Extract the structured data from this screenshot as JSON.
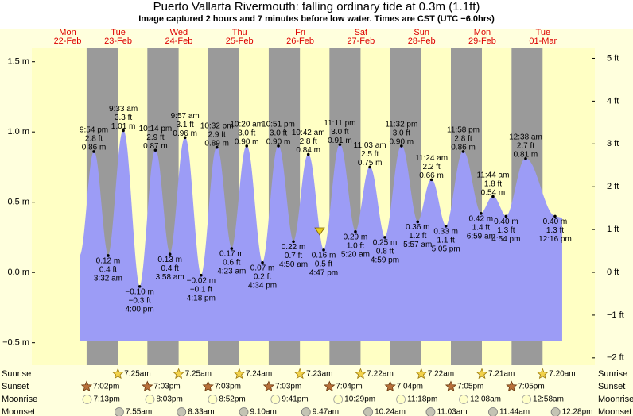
{
  "chart_data": {
    "type": "tide",
    "title": "Puerto Vallarta Rivermouth: falling  ordinary tide at 0.3m (1.1ft)",
    "subtitle": "Image captured 2 hours and 7 minutes before low water. Times are CST (UTC −6.0hrs)",
    "categories": [
      "Mon",
      "Tue",
      "Wed",
      "Thu",
      "Fri",
      "Sat",
      "Sun",
      "Mon",
      "Tue"
    ],
    "dates": [
      "22-Feb",
      "23-Feb",
      "24-Feb",
      "25-Feb",
      "26-Feb",
      "27-Feb",
      "28-Feb",
      "29-Feb",
      "01-Mar"
    ],
    "ylim": [
      -0.66,
      1.6
    ],
    "yticks": [
      {
        "value": -0.5,
        "label": "−0.5 m"
      },
      {
        "value": 0,
        "label": "0.0 m"
      },
      {
        "value": 0.5,
        "label": "0.5 m"
      },
      {
        "value": 1,
        "label": "1.0 m"
      },
      {
        "value": 1.5,
        "label": "1.5 m"
      }
    ],
    "y2lim": [
      -2.17,
      5.25
    ],
    "y2ticks": [
      {
        "value": -2,
        "label": "−2 ft"
      },
      {
        "value": -1,
        "label": "−1 ft"
      },
      {
        "value": 0,
        "label": "0 ft"
      },
      {
        "value": 1,
        "label": "1 ft"
      },
      {
        "value": 2,
        "label": "2 ft"
      },
      {
        "value": 3,
        "label": "3 ft"
      },
      {
        "value": 4,
        "label": "4 ft"
      },
      {
        "value": 5,
        "label": "5 ft"
      }
    ],
    "tides": {
      "color": "#9c9cf6",
      "times": [
        "9:54 pm",
        "3:32 am",
        "9:33 am",
        "4:00 pm",
        "10:14 pm",
        "3:58 am",
        "9:57 am",
        "4:18 pm",
        "10:32 pm",
        "4:23 am",
        "10:20 am",
        "4:34 pm",
        "10:51 pm",
        "4:50 am",
        "10:42 am",
        "4:47 pm",
        "11:11 pm",
        "5:20 am",
        "11:03 am",
        "4:59 pm",
        "11:32 pm",
        "5:57 am",
        "11:24 am",
        "5:05 pm",
        "11:58 pm",
        "6:59 am",
        "11:44 am",
        "4:54 pm",
        "12:38 am",
        "12:16 pm"
      ],
      "values": [
        0.86,
        0.12,
        1.01,
        -0.1,
        0.87,
        0.13,
        0.96,
        -0.02,
        0.89,
        0.17,
        0.9,
        0.07,
        0.9,
        0.22,
        0.84,
        0.16,
        0.91,
        0.29,
        0.75,
        0.25,
        0.9,
        0.36,
        0.66,
        0.33,
        0.86,
        0.42,
        0.54,
        0.4,
        0.81,
        0.4
      ],
      "value_labels": [
        "0.86 m",
        "0.12 m",
        "1.01 m",
        "−0.10 m",
        "0.87 m",
        "0.13 m",
        "0.96 m",
        "−0.02 m",
        "0.89 m",
        "0.17 m",
        "0.90 m",
        "0.07 m",
        "0.90 m",
        "0.22 m",
        "0.84 m",
        "0.16 m",
        "0.91 m",
        "0.29 m",
        "0.75 m",
        "0.25 m",
        "0.90 m",
        "0.36 m",
        "0.66 m",
        "0.33 m",
        "0.86 m",
        "0.42 m",
        "0.54 m",
        "0.40 m",
        "0.81 m",
        "0.40 m"
      ],
      "ft_labels": [
        "2.8 ft",
        "0.4 ft",
        "3.3 ft",
        "−0.3 ft",
        "2.9 ft",
        "0.4 ft",
        "3.1 ft",
        "−0.1 ft",
        "2.9 ft",
        "0.6 ft",
        "3.0 ft",
        "0.2 ft",
        "3.0 ft",
        "0.7 ft",
        "2.8 ft",
        "0.5 ft",
        "3.0 ft",
        "1.0 ft",
        "2.5 ft",
        "0.8 ft",
        "3.0 ft",
        "1.2 ft",
        "2.2 ft",
        "1.1 ft",
        "2.8 ft",
        "1.4 ft",
        "1.8 ft",
        "1.3 ft",
        "2.7 ft",
        "1.3 ft"
      ]
    },
    "events": [
      {
        "name": "Sunrise",
        "times": [
          null,
          "7:25am",
          "7:25am",
          "7:24am",
          "7:23am",
          "7:22am",
          "7:22am",
          "7:21am",
          "7:20am"
        ]
      },
      {
        "name": "Sunset",
        "times": [
          "7:02pm",
          "7:03pm",
          "7:03pm",
          "7:03pm",
          "7:04pm",
          "7:04pm",
          "7:05pm",
          "7:05pm",
          null
        ]
      },
      {
        "name": "Moonrise",
        "times": [
          "7:13pm",
          "8:03pm",
          "8:52pm",
          "9:41pm",
          "10:29pm",
          "11:18pm",
          null,
          "12:08am",
          "12:58am"
        ]
      },
      {
        "name": "Moonset",
        "times": [
          null,
          "7:55am",
          "8:33am",
          "9:10am",
          "9:47am",
          "10:24am",
          "11:03am",
          "11:44am",
          "12:28pm"
        ]
      }
    ]
  }
}
